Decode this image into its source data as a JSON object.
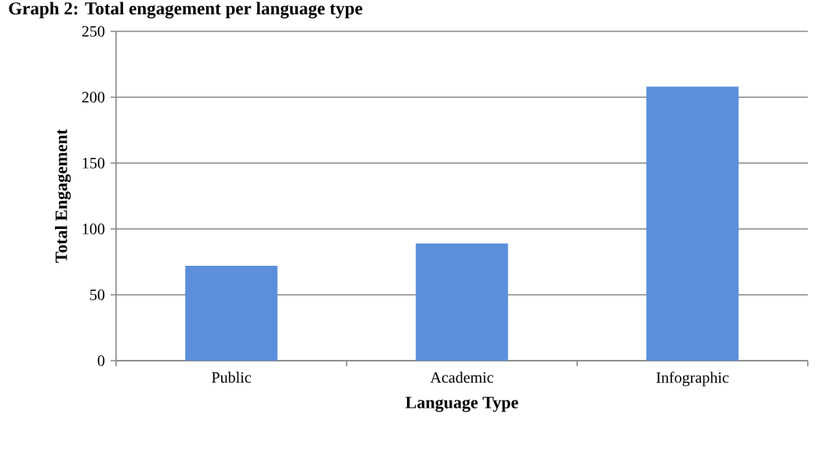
{
  "chart_data": {
    "type": "bar",
    "title": "Graph 2: Total engagement per language type",
    "xlabel": "Language Type",
    "ylabel": "Total Engagement",
    "categories": [
      "Public",
      "Academic",
      "Infographic"
    ],
    "values": [
      72,
      89,
      208
    ],
    "color": "#5b8fdb",
    "ylim": [
      0,
      250
    ],
    "yticks": [
      0,
      50,
      100,
      150,
      200,
      250
    ],
    "grid": "y"
  }
}
